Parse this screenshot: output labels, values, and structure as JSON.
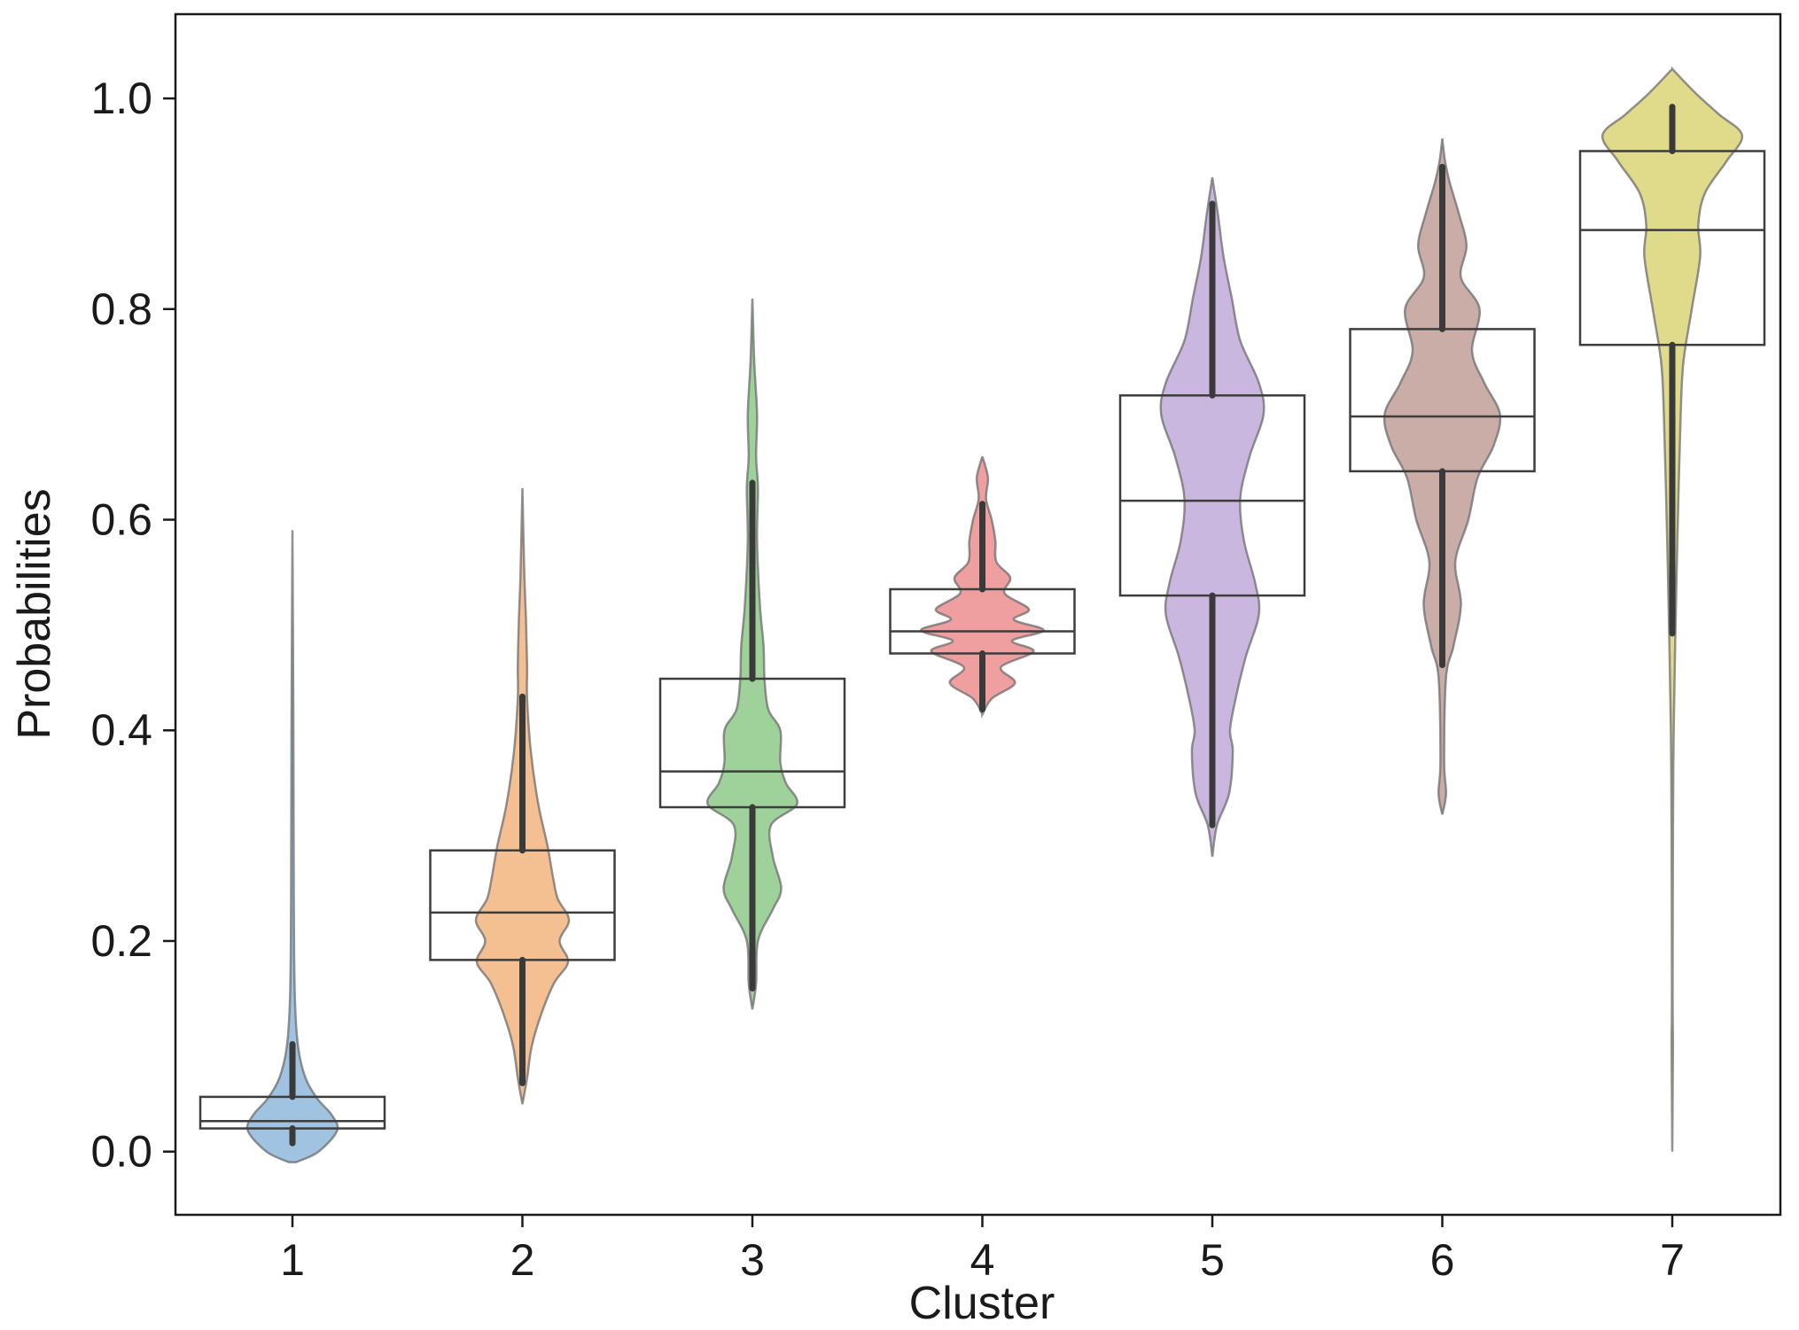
{
  "chart_data": {
    "type": "violin",
    "xlabel": "Cluster",
    "ylabel": "Probabilities",
    "categories": [
      "1",
      "2",
      "3",
      "4",
      "5",
      "6",
      "7"
    ],
    "ylim": [
      -0.06,
      1.08
    ],
    "yticks": [
      0.0,
      0.2,
      0.4,
      0.6,
      0.8,
      1.0
    ],
    "ytick_labels": [
      "0.0",
      "0.2",
      "0.4",
      "0.6",
      "0.8",
      "1.0"
    ],
    "grid": false,
    "legend": "none",
    "colors": [
      "#8fb9dc",
      "#f3b57e",
      "#8ec98a",
      "#ec8e8f",
      "#c1aadb",
      "#c19f96",
      "#d9d577"
    ],
    "series": [
      {
        "category": "1",
        "box": {
          "q1": 0.022,
          "median": 0.029,
          "q3": 0.052
        },
        "whisker": [
          0.008,
          0.102
        ],
        "violin_range": [
          -0.01,
          0.59
        ],
        "profile": [
          [
            -0.01,
            0.04
          ],
          [
            0.0,
            0.28
          ],
          [
            0.02,
            0.48
          ],
          [
            0.035,
            0.42
          ],
          [
            0.05,
            0.27
          ],
          [
            0.07,
            0.14
          ],
          [
            0.1,
            0.06
          ],
          [
            0.15,
            0.025
          ],
          [
            0.25,
            0.014
          ],
          [
            0.4,
            0.01
          ],
          [
            0.59,
            0.0
          ]
        ]
      },
      {
        "category": "2",
        "box": {
          "q1": 0.182,
          "median": 0.227,
          "q3": 0.286
        },
        "whisker": [
          0.065,
          0.432
        ],
        "violin_range": [
          0.045,
          0.63
        ],
        "profile": [
          [
            0.045,
            0.0
          ],
          [
            0.07,
            0.05
          ],
          [
            0.1,
            0.1
          ],
          [
            0.13,
            0.2
          ],
          [
            0.16,
            0.34
          ],
          [
            0.18,
            0.49
          ],
          [
            0.2,
            0.4
          ],
          [
            0.22,
            0.5
          ],
          [
            0.24,
            0.38
          ],
          [
            0.26,
            0.33
          ],
          [
            0.29,
            0.27
          ],
          [
            0.33,
            0.17
          ],
          [
            0.38,
            0.09
          ],
          [
            0.43,
            0.05
          ],
          [
            0.46,
            0.05
          ],
          [
            0.5,
            0.04
          ],
          [
            0.55,
            0.02
          ],
          [
            0.63,
            0.0
          ]
        ]
      },
      {
        "category": "3",
        "box": {
          "q1": 0.327,
          "median": 0.361,
          "q3": 0.449
        },
        "whisker": [
          0.155,
          0.635
        ],
        "violin_range": [
          0.135,
          0.81
        ],
        "profile": [
          [
            0.135,
            0.0
          ],
          [
            0.16,
            0.04
          ],
          [
            0.2,
            0.06
          ],
          [
            0.23,
            0.22
          ],
          [
            0.25,
            0.31
          ],
          [
            0.28,
            0.22
          ],
          [
            0.31,
            0.2
          ],
          [
            0.33,
            0.48
          ],
          [
            0.35,
            0.36
          ],
          [
            0.37,
            0.3
          ],
          [
            0.4,
            0.3
          ],
          [
            0.42,
            0.17
          ],
          [
            0.45,
            0.13
          ],
          [
            0.48,
            0.12
          ],
          [
            0.52,
            0.08
          ],
          [
            0.58,
            0.05
          ],
          [
            0.63,
            0.06
          ],
          [
            0.66,
            0.04
          ],
          [
            0.7,
            0.05
          ],
          [
            0.75,
            0.02
          ],
          [
            0.81,
            0.0
          ]
        ]
      },
      {
        "category": "4",
        "box": {
          "q1": 0.473,
          "median": 0.494,
          "q3": 0.534
        },
        "whisker": [
          0.42,
          0.615
        ],
        "violin_range": [
          0.415,
          0.66
        ],
        "profile": [
          [
            0.415,
            0.0
          ],
          [
            0.43,
            0.1
          ],
          [
            0.445,
            0.35
          ],
          [
            0.46,
            0.2
          ],
          [
            0.475,
            0.55
          ],
          [
            0.485,
            0.32
          ],
          [
            0.495,
            0.66
          ],
          [
            0.505,
            0.34
          ],
          [
            0.515,
            0.5
          ],
          [
            0.53,
            0.24
          ],
          [
            0.545,
            0.3
          ],
          [
            0.56,
            0.15
          ],
          [
            0.58,
            0.14
          ],
          [
            0.6,
            0.1
          ],
          [
            0.62,
            0.04
          ],
          [
            0.64,
            0.06
          ],
          [
            0.66,
            0.0
          ]
        ]
      },
      {
        "category": "5",
        "box": {
          "q1": 0.528,
          "median": 0.618,
          "q3": 0.718
        },
        "whisker": [
          0.31,
          0.9
        ],
        "violin_range": [
          0.28,
          0.925
        ],
        "profile": [
          [
            0.28,
            0.0
          ],
          [
            0.31,
            0.05
          ],
          [
            0.34,
            0.18
          ],
          [
            0.38,
            0.22
          ],
          [
            0.4,
            0.19
          ],
          [
            0.43,
            0.25
          ],
          [
            0.47,
            0.36
          ],
          [
            0.51,
            0.5
          ],
          [
            0.54,
            0.46
          ],
          [
            0.58,
            0.34
          ],
          [
            0.62,
            0.3
          ],
          [
            0.66,
            0.4
          ],
          [
            0.7,
            0.55
          ],
          [
            0.73,
            0.5
          ],
          [
            0.77,
            0.3
          ],
          [
            0.81,
            0.21
          ],
          [
            0.85,
            0.12
          ],
          [
            0.89,
            0.06
          ],
          [
            0.925,
            0.0
          ]
        ]
      },
      {
        "category": "6",
        "box": {
          "q1": 0.646,
          "median": 0.698,
          "q3": 0.781
        },
        "whisker": [
          0.462,
          0.935
        ],
        "violin_range": [
          0.32,
          0.962
        ],
        "profile": [
          [
            0.32,
            0.0
          ],
          [
            0.34,
            0.04
          ],
          [
            0.37,
            0.02
          ],
          [
            0.45,
            0.04
          ],
          [
            0.48,
            0.12
          ],
          [
            0.52,
            0.2
          ],
          [
            0.56,
            0.14
          ],
          [
            0.6,
            0.28
          ],
          [
            0.64,
            0.38
          ],
          [
            0.67,
            0.55
          ],
          [
            0.7,
            0.62
          ],
          [
            0.73,
            0.45
          ],
          [
            0.76,
            0.32
          ],
          [
            0.8,
            0.4
          ],
          [
            0.83,
            0.2
          ],
          [
            0.86,
            0.26
          ],
          [
            0.89,
            0.18
          ],
          [
            0.92,
            0.08
          ],
          [
            0.94,
            0.03
          ],
          [
            0.962,
            0.0
          ]
        ]
      },
      {
        "category": "7",
        "box": {
          "q1": 0.766,
          "median": 0.875,
          "q3": 0.95
        },
        "whisker": [
          0.492,
          0.992
        ],
        "violin_range": [
          0.0,
          1.028
        ],
        "profile": [
          [
            0.0,
            0.0
          ],
          [
            0.05,
            0.004
          ],
          [
            0.1,
            0.008
          ],
          [
            0.15,
            0.004
          ],
          [
            0.3,
            0.008
          ],
          [
            0.4,
            0.015
          ],
          [
            0.5,
            0.035
          ],
          [
            0.6,
            0.06
          ],
          [
            0.7,
            0.09
          ],
          [
            0.75,
            0.12
          ],
          [
            0.8,
            0.21
          ],
          [
            0.85,
            0.3
          ],
          [
            0.88,
            0.28
          ],
          [
            0.91,
            0.35
          ],
          [
            0.94,
            0.58
          ],
          [
            0.965,
            0.75
          ],
          [
            0.985,
            0.5
          ],
          [
            1.005,
            0.25
          ],
          [
            1.028,
            0.0
          ]
        ]
      }
    ]
  }
}
